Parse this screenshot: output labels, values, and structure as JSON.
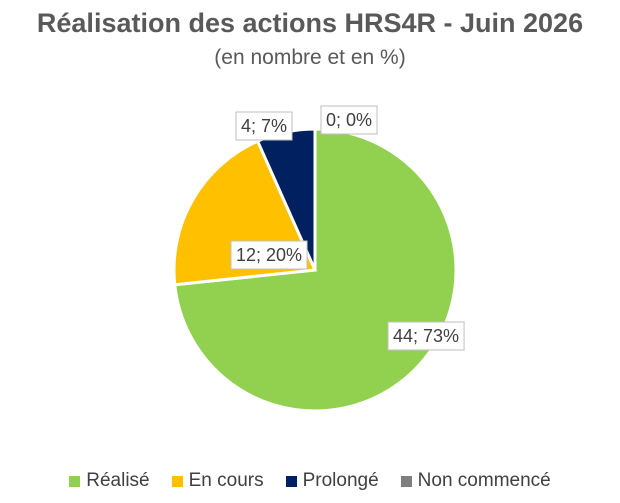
{
  "chart_data": {
    "type": "pie",
    "title": "Réalisation des actions HRS4R  - Juin 2026",
    "subtitle": "(en nombre et en %)",
    "categories": [
      "Réalisé",
      "En cours",
      "Prolongé",
      "Non commencé"
    ],
    "values": [
      44,
      12,
      4,
      0
    ],
    "percentages": [
      73,
      20,
      7,
      0
    ],
    "data_labels": [
      "44; 73%",
      "12; 20%",
      "4; 7%",
      "0; 0%"
    ],
    "colors": [
      "#92D050",
      "#FFC000",
      "#002060",
      "#7F7F7F"
    ],
    "legend_position": "bottom"
  }
}
